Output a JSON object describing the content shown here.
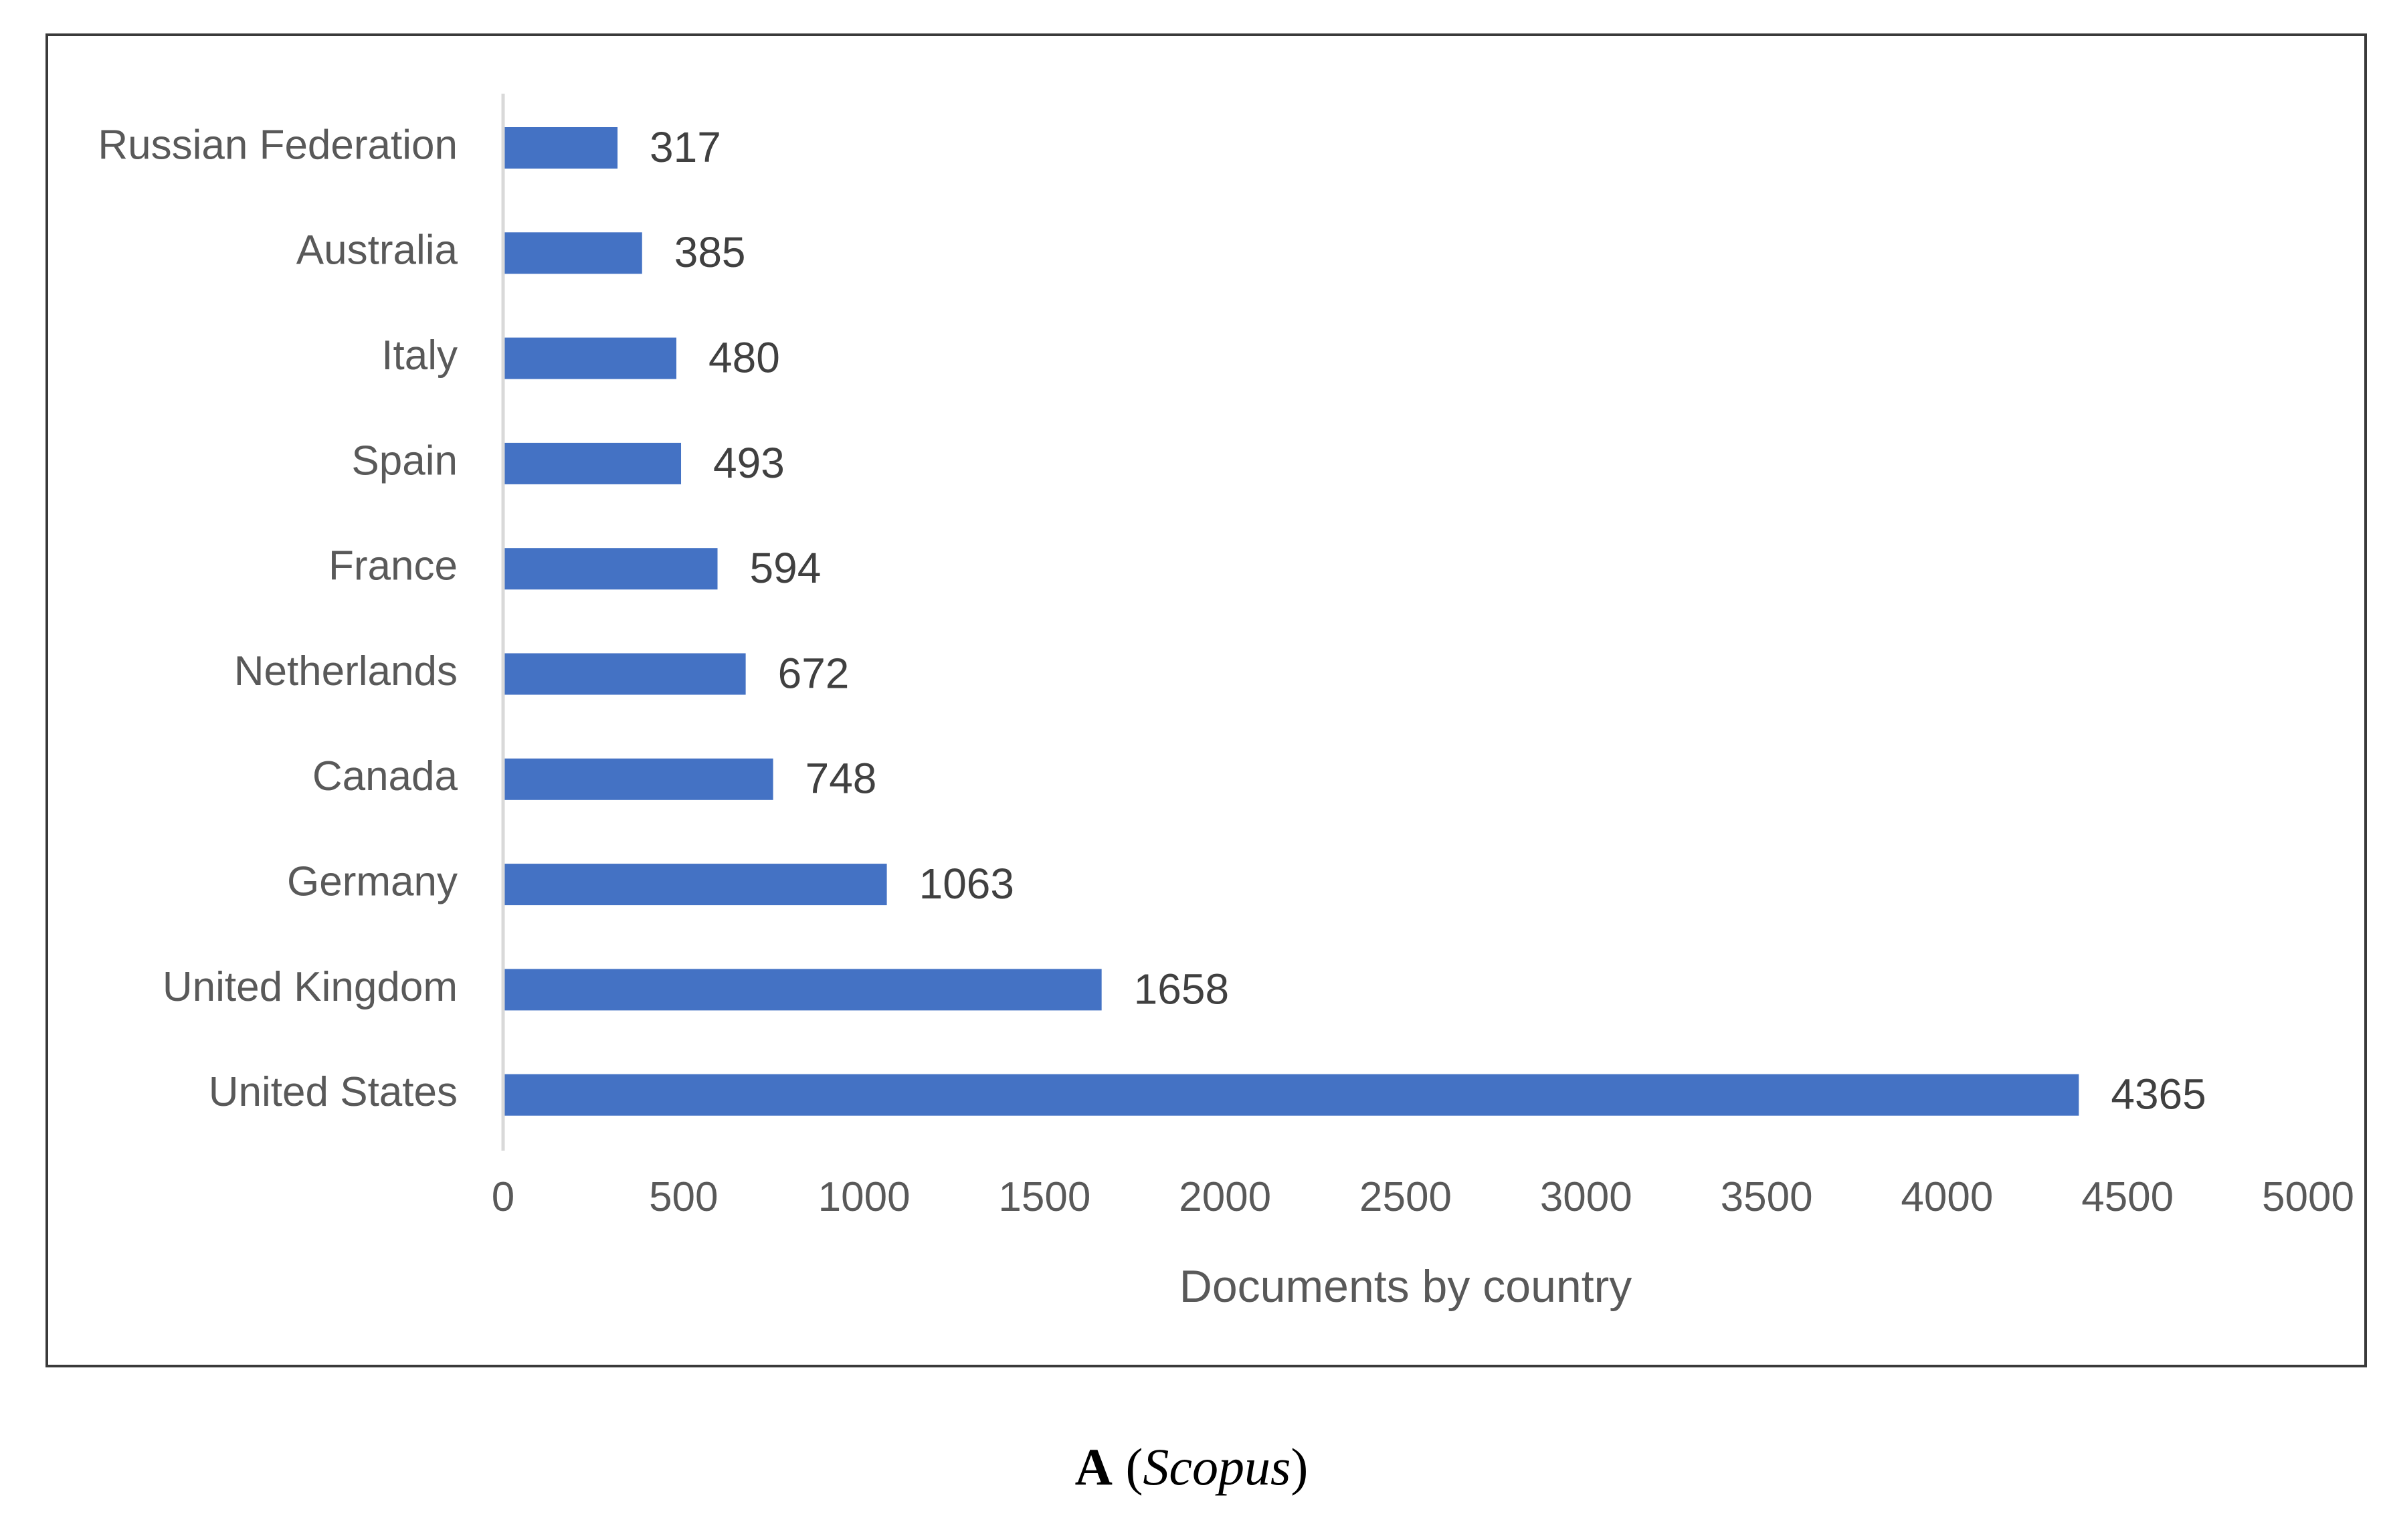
{
  "chart_data": {
    "type": "bar",
    "orientation": "horizontal",
    "categories": [
      "Russian Federation",
      "Australia",
      "Italy",
      "Spain",
      "France",
      "Netherlands",
      "Canada",
      "Germany",
      "United Kingdom",
      "United States"
    ],
    "values": [
      317,
      385,
      480,
      493,
      594,
      672,
      748,
      1063,
      1658,
      4365
    ],
    "xlabel": "Documents by country",
    "ylabel": "",
    "xlim": [
      0,
      5000
    ],
    "xticks": [
      "0",
      "500",
      "1000",
      "1500",
      "2000",
      "2500",
      "3000",
      "3500",
      "4000",
      "4500",
      "5000"
    ],
    "grid": false,
    "data_labels": true,
    "bar_color": "#4472C4"
  },
  "caption": {
    "panel_letter": "A",
    "open_paren": " (",
    "database": "Scopus",
    "close_paren": ")"
  }
}
